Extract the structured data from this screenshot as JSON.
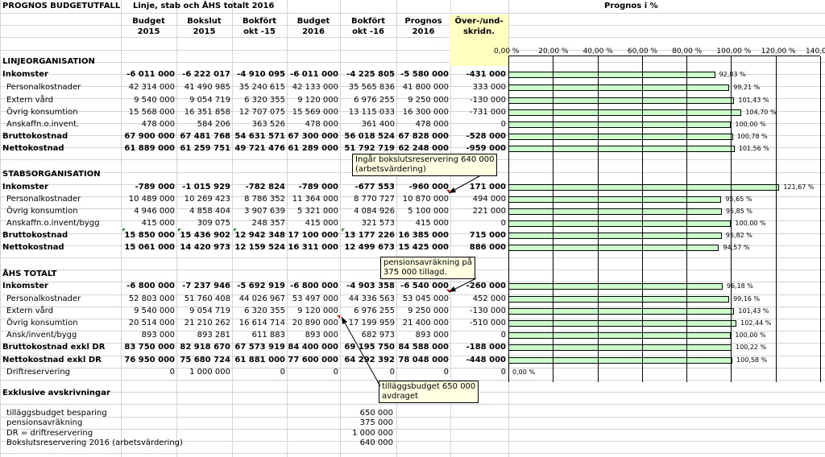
{
  "sheet": {
    "title": "PROGNOS BUDGETUTFALL",
    "subtitle": "Linje, stab och ÅHS totalt 2016",
    "chart_title": "Prognos  i  %",
    "columns": [
      {
        "line1": "Budget",
        "line2": "2015"
      },
      {
        "line1": "Bokslut",
        "line2": "2015"
      },
      {
        "line1": "Bokfört",
        "line2": "okt -15"
      },
      {
        "line1": "Budget",
        "line2": "2016"
      },
      {
        "line1": "Bokfört",
        "line2": "okt -16"
      },
      {
        "line1": "Prognos",
        "line2": "2016"
      },
      {
        "line1": "Över-/und-",
        "line2": "skridn."
      }
    ],
    "sections": [
      {
        "heading": "LINJEORGANISATION",
        "rows": [
          {
            "label": "Inkomster",
            "bold": true,
            "indent": false,
            "values": [
              "-6 011 000",
              "-6 222 017",
              "-4 910 095",
              "-6 011 000",
              "-4 225 805",
              "-5 580 000",
              "-431 000"
            ],
            "pct": 92.83,
            "pct_label": "92,83 %"
          },
          {
            "label": "Personalkostnader",
            "bold": false,
            "indent": true,
            "values": [
              "42 314 000",
              "41 490 985",
              "35 240 615",
              "42 133 000",
              "35 565 836",
              "41 800 000",
              "333 000"
            ],
            "pct": 99.21,
            "pct_label": "99,21 %"
          },
          {
            "label": "Extern vård",
            "bold": false,
            "indent": true,
            "values": [
              "9 540 000",
              "9 054 719",
              "6 320 355",
              "9 120 000",
              "6 976 255",
              "9 250 000",
              "-130 000"
            ],
            "pct": 101.43,
            "pct_label": "101,43 %"
          },
          {
            "label": "Övrig konsumtion",
            "bold": false,
            "indent": true,
            "values": [
              "15 568 000",
              "16 351 858",
              "12 707 075",
              "15 569 000",
              "13 115 033",
              "16 300 000",
              "-731 000"
            ],
            "pct": 104.7,
            "pct_label": "104,70 %"
          },
          {
            "label": "Anskaffn.o.invent.",
            "bold": false,
            "indent": true,
            "values": [
              "478 000",
              "584 206",
              "363 526",
              "478 000",
              "361 400",
              "478 000",
              "0"
            ],
            "pct": 100.0,
            "pct_label": "100,00 %"
          },
          {
            "label": "Bruttokostnad",
            "bold": true,
            "indent": false,
            "values": [
              "67 900 000",
              "67 481 768",
              "54 631 571",
              "67 300 000",
              "56 018 524",
              "67 828 000",
              "-528 000"
            ],
            "pct": 100.78,
            "pct_label": "100,78 %"
          },
          {
            "label": "Nettokostnad",
            "bold": true,
            "indent": false,
            "values": [
              "61 889 000",
              "61 259 751",
              "49 721 476",
              "61 289 000",
              "51 792 719",
              "62 248 000",
              "-959 000"
            ],
            "pct": 101.56,
            "pct_label": "101,56 %"
          }
        ]
      },
      {
        "heading": "STABSORGANISATION",
        "rows": [
          {
            "label": "Inkomster",
            "bold": true,
            "indent": false,
            "values": [
              "-789 000",
              "-1 015 929",
              "-782 824",
              "-789 000",
              "-677 553",
              "-960 000",
              "171 000"
            ],
            "pct": 121.67,
            "pct_label": "121,67 %"
          },
          {
            "label": "Personalkostnader",
            "bold": false,
            "indent": true,
            "values": [
              "10 489 000",
              "10 269 423",
              "8 786 352",
              "11 364 000",
              "8 770 727",
              "10 870 000",
              "494 000"
            ],
            "pct": 95.65,
            "pct_label": "95,65 %"
          },
          {
            "label": "Övrig konsumtion",
            "bold": false,
            "indent": true,
            "values": [
              "4 946 000",
              "4 858 404",
              "3 907 639",
              "5 321 000",
              "4 084 926",
              "5 100 000",
              "221 000"
            ],
            "pct": 95.85,
            "pct_label": "95,85 %"
          },
          {
            "label": "Anskaffn.o.invent/bygg",
            "bold": false,
            "indent": true,
            "values": [
              "415 000",
              "309 075",
              "248 357",
              "415 000",
              "321 573",
              "415 000",
              "0"
            ],
            "pct": 100.0,
            "pct_label": "100,00 %"
          },
          {
            "label": "Bruttokostnad",
            "bold": true,
            "indent": false,
            "values": [
              "15 850 000",
              "15 436 902",
              "12 942 348",
              "17 100 000",
              "13 177 226",
              "16 385 000",
              "715 000"
            ],
            "pct": 95.82,
            "pct_label": "95,82 %"
          },
          {
            "label": "Nettokostnad",
            "bold": true,
            "indent": false,
            "values": [
              "15 061 000",
              "14 420 973",
              "12 159 524",
              "16 311 000",
              "12 499 673",
              "15 425 000",
              "886 000"
            ],
            "pct": 94.57,
            "pct_label": "94,57 %"
          }
        ]
      },
      {
        "heading": "ÅHS TOTALT",
        "rows": [
          {
            "label": "Inkomster",
            "bold": true,
            "indent": false,
            "values": [
              "-6 800 000",
              "-7 237 946",
              "-5 692 919",
              "-6 800 000",
              "-4 903 358",
              "-6 540 000",
              "-260 000"
            ],
            "pct": 96.18,
            "pct_label": "96,18 %"
          },
          {
            "label": "Personalkostnader",
            "bold": false,
            "indent": true,
            "values": [
              "52 803 000",
              "51 760 408",
              "44 026 967",
              "53 497 000",
              "44 336 563",
              "53 045 000",
              "452 000"
            ],
            "pct": 99.16,
            "pct_label": "99,16 %"
          },
          {
            "label": "Extern vård",
            "bold": false,
            "indent": true,
            "values": [
              "9 540 000",
              "9 054 719",
              "6 320 355",
              "9 120 000",
              "6 976 255",
              "9 250 000",
              "-130 000"
            ],
            "pct": 101.43,
            "pct_label": "101,43 %"
          },
          {
            "label": "Övrig konsumtion",
            "bold": false,
            "indent": true,
            "values": [
              "20 514 000",
              "21 210 262",
              "16 614 714",
              "20 890 000",
              "17 199 959",
              "21 400 000",
              "-510 000"
            ],
            "pct": 102.44,
            "pct_label": "102,44 %"
          },
          {
            "label": "Ansk/invent/bygg",
            "bold": false,
            "indent": true,
            "values": [
              "893 000",
              "893 281",
              "611 883",
              "893 000",
              "682 973",
              "893 000",
              "0"
            ],
            "pct": 100.0,
            "pct_label": "100,00 %"
          },
          {
            "label": "Bruttokostnad exkl DR",
            "bold": true,
            "indent": false,
            "values": [
              "83 750 000",
              "82 918 670",
              "67 573 919",
              "84 400 000",
              "69 195 750",
              "84 588 000",
              "-188 000"
            ],
            "pct": 100.22,
            "pct_label": "100,22 %"
          },
          {
            "label": "Nettokostnad exkl DR",
            "bold": true,
            "indent": false,
            "values": [
              "76 950 000",
              "75 680 724",
              "61 881 000",
              "77 600 000",
              "64 292 392",
              "78 048 000",
              "-448 000"
            ],
            "pct": 100.58,
            "pct_label": "100,58 %"
          },
          {
            "label": "Driftreservering",
            "bold": false,
            "indent": true,
            "values": [
              "0",
              "1 000 000",
              "0",
              "0",
              "0",
              "0",
              "0"
            ],
            "pct": 0.0,
            "pct_label": "0,00 %"
          }
        ]
      }
    ],
    "exklusive": {
      "heading": "Exklusive avskrivningar",
      "items": [
        {
          "label": "tilläggsbudget besparing",
          "value": "650 000"
        },
        {
          "label": "pensionsavräkning",
          "value": "375 000"
        },
        {
          "label": "DR = driftreservering",
          "value": "1 000 000"
        },
        {
          "label": "Bokslutsreservering 2016 (arbetsvärdering)",
          "value": "640 000"
        }
      ]
    },
    "comments": [
      {
        "line1": "Ingår bokslutsreservering 640 000",
        "line2": "(arbetsvärdering)"
      },
      {
        "line1": "pensionsavräkning på",
        "line2": "375 000 tillagd."
      },
      {
        "line1": "tilläggsbudget  650 000",
        "line2": "avdraget"
      }
    ]
  },
  "chart_data": {
    "type": "bar",
    "orientation": "horizontal",
    "title": "Prognos  i  %",
    "xlim": [
      0,
      140
    ],
    "x_ticks": [
      "0,00 %",
      "20,00 %",
      "40,00 %",
      "60,00 %",
      "80,00 %",
      "100,00 %",
      "120,00 %",
      "140,00 %"
    ],
    "bar_color": "#ccffcc"
  }
}
